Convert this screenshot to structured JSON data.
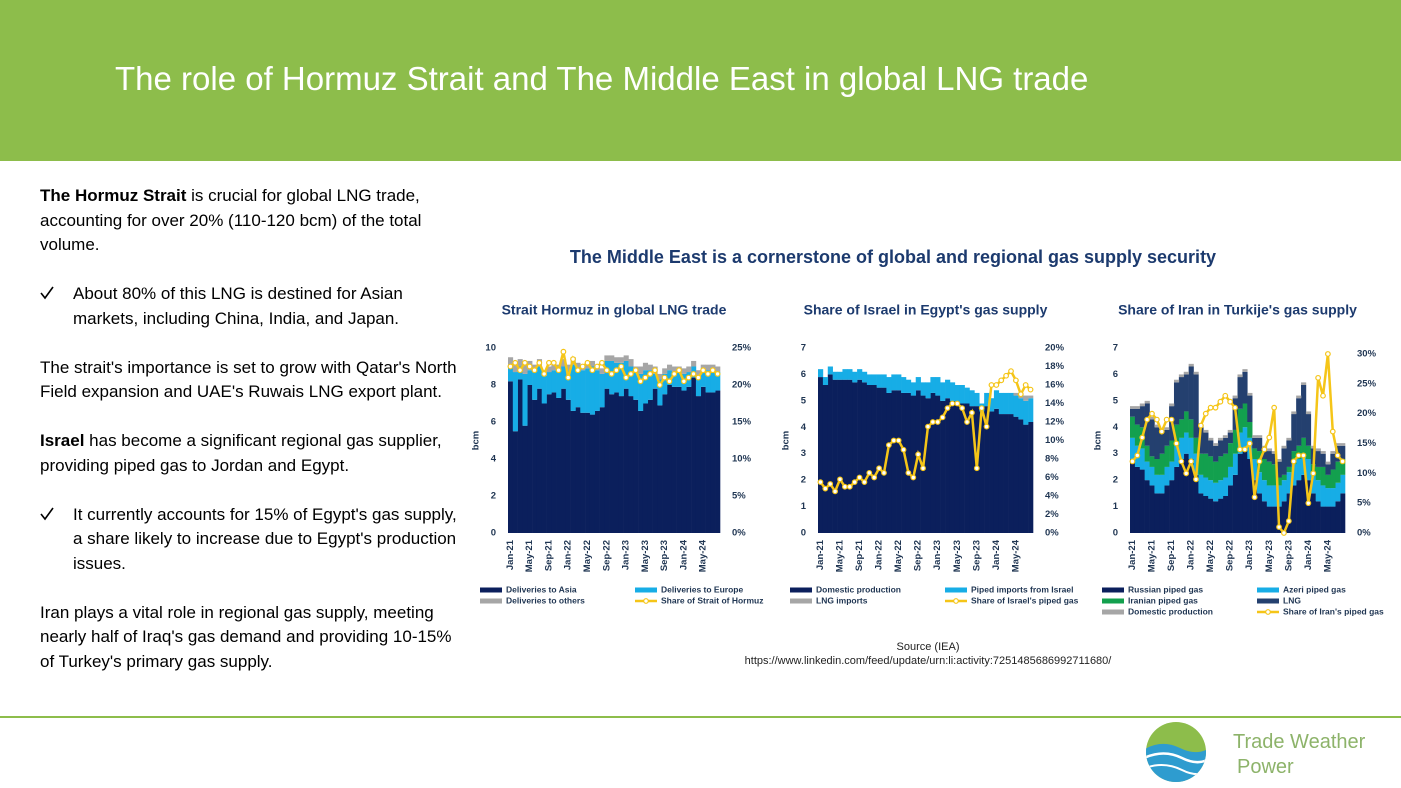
{
  "header": {
    "title": "The role of Hormuz Strait and The Middle East in global LNG trade"
  },
  "body": [
    {
      "bold": "The Hormuz Strait",
      "text": " is crucial for global LNG trade, accounting for over 20% (110-120 bcm) of the total volume."
    },
    {
      "text": "About 80% of this LNG is destined for Asian markets, including China, India, and Japan."
    },
    {
      "text": "The strait's importance is set to grow with Qatar's North Field expansion and UAE's Ruwais LNG export plant."
    },
    {
      "bold": "Israel",
      "text": " has become a significant regional gas supplier, providing piped gas to Jordan and Egypt."
    },
    {
      "text": "It currently accounts for 15% of Egypt's gas supply, a share likely to increase due to Egypt's production issues."
    },
    {
      "text": "Iran plays a vital role in regional gas supply, meeting nearly half of Iraq's gas demand and providing 10-15% of Turkey's primary gas supply."
    }
  ],
  "figure": {
    "title": "The Middle East is a cornerstone of global and regional gas supply security",
    "source": [
      "Source (IEA)",
      "https://www.linkedin.com/feed/update/urn:li:activity:7251485686992711680/"
    ]
  },
  "logo": {
    "line1": "Trade Weather",
    "line2": "Power"
  },
  "chart_data": [
    {
      "type": "bar",
      "stacked": true,
      "title": "Strait Hormuz in global LNG trade",
      "y_label": "bcm",
      "categories": [
        "Jan-21",
        null,
        null,
        null,
        "May-21",
        null,
        null,
        null,
        "Sep-21",
        null,
        null,
        null,
        "Jan-22",
        null,
        null,
        null,
        "May-22",
        null,
        null,
        null,
        "Sep-22",
        null,
        null,
        null,
        "Jan-23",
        null,
        null,
        null,
        "May-23",
        null,
        null,
        null,
        "Sep-23",
        null,
        null,
        null,
        "Jan-24",
        null,
        null,
        null,
        "May-24",
        null,
        null,
        null
      ],
      "ylim": [
        0,
        10
      ],
      "yticks": [
        0,
        2,
        4,
        6,
        8,
        10
      ],
      "y2lim": [
        0,
        25
      ],
      "y2ticks": [
        {
          "value": 0,
          "label": "0%"
        },
        {
          "value": 5,
          "label": "5%"
        },
        {
          "value": 10,
          "label": "10%"
        },
        {
          "value": 15,
          "label": "15%"
        },
        {
          "value": 20,
          "label": "20%"
        },
        {
          "value": 25,
          "label": "25%"
        }
      ],
      "series": [
        {
          "name": "Deliveries to Asia",
          "color": "#0b1f5c",
          "values": [
            8.2,
            5.5,
            8.3,
            5.8,
            8,
            7.2,
            7.8,
            7,
            7.5,
            7.6,
            7.3,
            7.8,
            7.2,
            6.6,
            6.8,
            6.5,
            6.5,
            6.4,
            6.6,
            6.8,
            7.8,
            7.5,
            7.6,
            7.4,
            7.8,
            7.4,
            7.2,
            6.6,
            7.0,
            7.2,
            7.8,
            6.9,
            7.5,
            8.0,
            7.9,
            7.9,
            7.7,
            7.9,
            8.4,
            7.4,
            7.9,
            7.6,
            7.6,
            7.7
          ]
        },
        {
          "name": "Deliveries to Europe",
          "color": "#17ade6",
          "values": [
            0.8,
            3.2,
            0.7,
            2.8,
            0.8,
            1.5,
            1.2,
            1.5,
            1.2,
            1.2,
            1.5,
            1.2,
            1.6,
            2.5,
            2.0,
            2.3,
            2.4,
            2.6,
            2.2,
            1.8,
            1.5,
            1.8,
            1.6,
            1.8,
            1.5,
            1.6,
            1.5,
            2.0,
            1.8,
            1.6,
            0.8,
            1.4,
            1.1,
            0.8,
            0.8,
            0.8,
            0.9,
            0.8,
            0.6,
            1.1,
            0.9,
            1.2,
            1.2,
            1.0
          ]
        },
        {
          "name": "Deliveries to others",
          "color": "#a6a6a6",
          "values": [
            0.5,
            0.4,
            0.4,
            0.5,
            0.5,
            0.4,
            0.4,
            0.3,
            0.3,
            0.3,
            0.3,
            0.4,
            0.3,
            0.4,
            0.4,
            0.3,
            0.3,
            0.3,
            0.3,
            0.3,
            0.3,
            0.3,
            0.3,
            0.3,
            0.3,
            0.4,
            0.3,
            0.4,
            0.4,
            0.3,
            0.4,
            0.3,
            0.3,
            0.3,
            0.3,
            0.3,
            0.3,
            0.3,
            0.3,
            0.3,
            0.3,
            0.3,
            0.3,
            0.3
          ]
        },
        {
          "name": "Share of Strait of Hormuz",
          "color": "#f5c518",
          "type": "line",
          "axis": "y2",
          "values": [
            22.5,
            23,
            22,
            23,
            22.5,
            22,
            23,
            21.5,
            23,
            23,
            22,
            24.5,
            21,
            23.5,
            22,
            22.5,
            23,
            22,
            22.5,
            23,
            22,
            21.5,
            22,
            22.5,
            21,
            21.5,
            22,
            20.5,
            21,
            21.5,
            22,
            20,
            21,
            20.5,
            21.5,
            22,
            20.5,
            21,
            21.5,
            21,
            22,
            21.5,
            22,
            21.5
          ]
        }
      ]
    },
    {
      "type": "bar",
      "stacked": true,
      "title": "Share of Israel in Egypt's gas supply",
      "y_label": "bcm",
      "categories": [
        "Jan-21",
        null,
        null,
        null,
        "May-21",
        null,
        null,
        null,
        "Sep-21",
        null,
        null,
        null,
        "Jan-22",
        null,
        null,
        null,
        "May-22",
        null,
        null,
        null,
        "Sep-22",
        null,
        null,
        null,
        "Jan-23",
        null,
        null,
        null,
        "May-23",
        null,
        null,
        null,
        "Sep-23",
        null,
        null,
        null,
        "Jan-24",
        null,
        null,
        null,
        "May-24",
        null,
        null,
        null
      ],
      "ylim": [
        0,
        7
      ],
      "yticks": [
        0,
        1,
        2,
        3,
        4,
        5,
        6,
        7
      ],
      "y2lim": [
        0,
        20
      ],
      "y2ticks": [
        {
          "value": 0,
          "label": "0%"
        },
        {
          "value": 2,
          "label": "2%"
        },
        {
          "value": 4,
          "label": "4%"
        },
        {
          "value": 6,
          "label": "6%"
        },
        {
          "value": 8,
          "label": "8%"
        },
        {
          "value": 10,
          "label": "10%"
        },
        {
          "value": 12,
          "label": "12%"
        },
        {
          "value": 14,
          "label": "14%"
        },
        {
          "value": 16,
          "label": "16%"
        },
        {
          "value": 18,
          "label": "18%"
        },
        {
          "value": 20,
          "label": "20%"
        }
      ],
      "series": [
        {
          "name": "Domestic production",
          "color": "#0b1f5c",
          "values": [
            5.9,
            5.6,
            6.0,
            5.8,
            5.8,
            5.8,
            5.8,
            5.7,
            5.8,
            5.7,
            5.6,
            5.6,
            5.5,
            5.5,
            5.3,
            5.4,
            5.4,
            5.3,
            5.3,
            5.2,
            5.4,
            5.2,
            5.1,
            5.3,
            5.2,
            5.0,
            5.1,
            5.0,
            4.9,
            4.9,
            4.9,
            4.8,
            4.8,
            4.6,
            4.8,
            4.6,
            4.7,
            4.5,
            4.5,
            4.5,
            4.4,
            4.3,
            4.1,
            4.2
          ]
        },
        {
          "name": "Piped imports from Israel",
          "color": "#17ade6",
          "values": [
            0.3,
            0.3,
            0.3,
            0.3,
            0.3,
            0.4,
            0.4,
            0.4,
            0.4,
            0.4,
            0.4,
            0.4,
            0.5,
            0.5,
            0.6,
            0.6,
            0.6,
            0.6,
            0.5,
            0.5,
            0.5,
            0.5,
            0.6,
            0.6,
            0.7,
            0.7,
            0.7,
            0.7,
            0.7,
            0.7,
            0.6,
            0.6,
            0.5,
            0.3,
            0.5,
            0.5,
            0.7,
            0.8,
            0.8,
            0.8,
            0.8,
            0.8,
            0.9,
            0.9
          ]
        },
        {
          "name": "LNG imports",
          "color": "#a6a6a6",
          "values": [
            0,
            0,
            0,
            0,
            0,
            0,
            0,
            0,
            0,
            0,
            0,
            0,
            0,
            0,
            0,
            0,
            0,
            0,
            0,
            0,
            0,
            0,
            0,
            0,
            0,
            0,
            0,
            0,
            0,
            0,
            0,
            0,
            0,
            0,
            0,
            0,
            0,
            0,
            0,
            0,
            0.1,
            0.2,
            0.2,
            0.1
          ]
        },
        {
          "name": "Share of Israel's piped gas",
          "color": "#f5c518",
          "type": "line",
          "axis": "y2",
          "values": [
            5.5,
            4.8,
            5.3,
            4.5,
            5.8,
            5,
            5,
            5.5,
            6,
            5.5,
            6.5,
            6,
            7,
            6.5,
            9.5,
            10,
            10,
            9,
            6.5,
            6,
            8.5,
            7,
            11.5,
            12,
            12,
            12.5,
            13.5,
            14,
            14,
            13.5,
            12,
            13,
            7,
            13.5,
            11.5,
            16,
            16,
            16.5,
            17,
            17.5,
            16.5,
            15,
            16,
            15.5
          ]
        }
      ]
    },
    {
      "type": "bar",
      "stacked": true,
      "title": "Share of Iran in Turkije's gas supply",
      "y_label": "bcm",
      "categories": [
        "Jan-21",
        null,
        null,
        null,
        "May-21",
        null,
        null,
        null,
        "Sep-21",
        null,
        null,
        null,
        "Jan-22",
        null,
        null,
        null,
        "May-22",
        null,
        null,
        null,
        "Sep-22",
        null,
        null,
        null,
        "Jan-23",
        null,
        null,
        null,
        "May-23",
        null,
        null,
        null,
        "Sep-23",
        null,
        null,
        null,
        "Jan-24",
        null,
        null,
        null,
        "May-24",
        null,
        null,
        null
      ],
      "ylim": [
        0,
        7
      ],
      "yticks": [
        0,
        1,
        2,
        3,
        4,
        5,
        6,
        7
      ],
      "y2lim": [
        0,
        31
      ],
      "y2ticks": [
        {
          "value": 0,
          "label": "0%"
        },
        {
          "value": 5,
          "label": "5%"
        },
        {
          "value": 10,
          "label": "10%"
        },
        {
          "value": 15,
          "label": "15%"
        },
        {
          "value": 20,
          "label": "20%"
        },
        {
          "value": 25,
          "label": "25%"
        },
        {
          "value": 30,
          "label": "30%"
        }
      ],
      "series": [
        {
          "name": "Russian piped gas",
          "color": "#0b1f5c",
          "values": [
            2.8,
            2.5,
            2.4,
            2.0,
            1.8,
            1.5,
            1.5,
            1.8,
            2.0,
            2.5,
            2.8,
            3.0,
            2.8,
            2.2,
            1.5,
            1.4,
            1.3,
            1.2,
            1.3,
            1.4,
            1.8,
            2.2,
            3.0,
            3.2,
            2.8,
            2.0,
            1.5,
            1.2,
            1.0,
            1.0,
            1.0,
            1.2,
            1.5,
            1.8,
            2.0,
            2.2,
            2.0,
            1.5,
            1.2,
            1.0,
            1.0,
            1.0,
            1.2,
            1.5
          ]
        },
        {
          "name": "Azeri piped gas",
          "color": "#17ade6",
          "values": [
            0.8,
            0.8,
            0.8,
            0.7,
            0.7,
            0.7,
            0.7,
            0.7,
            0.7,
            0.8,
            0.8,
            0.8,
            0.8,
            0.8,
            0.7,
            0.7,
            0.7,
            0.7,
            0.7,
            0.7,
            0.7,
            0.8,
            0.8,
            0.8,
            0.8,
            0.8,
            0.8,
            0.8,
            0.8,
            0.8,
            0.8,
            0.8,
            0.8,
            0.8,
            0.8,
            0.8,
            0.8,
            0.8,
            0.8,
            0.8,
            0.7,
            0.7,
            0.7,
            0.7
          ]
        },
        {
          "name": "Iranian piped gas",
          "color": "#13a04e",
          "values": [
            0.8,
            0.8,
            0.8,
            0.6,
            0.4,
            0.6,
            0.8,
            0.8,
            0.8,
            0.8,
            0.7,
            0.8,
            0.7,
            0.6,
            0.8,
            0.9,
            0.9,
            0.8,
            0.9,
            0.9,
            0.9,
            0.9,
            0.9,
            0.9,
            0.6,
            0.4,
            0.8,
            0.8,
            0.9,
            0.8,
            0.3,
            0.2,
            0.2,
            0.5,
            0.5,
            0.6,
            0.5,
            0.3,
            0.5,
            0.7,
            0.5,
            0.7,
            0.8,
            0.6
          ]
        },
        {
          "name": "LNG",
          "color": "#24406f",
          "values": [
            0.3,
            0.6,
            0.8,
            1.6,
            1.4,
            1.2,
            0.8,
            0.6,
            1.3,
            1.6,
            1.6,
            1.4,
            2.0,
            2.4,
            1.0,
            0.8,
            0.6,
            0.6,
            0.6,
            0.6,
            0.4,
            1.2,
            1.2,
            1.2,
            1.0,
            0.4,
            0.5,
            0.4,
            0.4,
            0.4,
            0.6,
            1.0,
            1.0,
            1.4,
            1.8,
            2.0,
            1.2,
            0.6,
            0.6,
            0.5,
            0.4,
            0.6,
            0.6,
            0.5
          ]
        },
        {
          "name": "Domestic production",
          "color": "#a6a6a6",
          "values": [
            0.1,
            0.1,
            0.1,
            0.1,
            0.1,
            0.1,
            0.1,
            0.1,
            0.1,
            0.1,
            0.1,
            0.1,
            0.1,
            0.1,
            0.1,
            0.1,
            0.1,
            0.1,
            0.1,
            0.1,
            0.1,
            0.1,
            0.1,
            0.1,
            0.1,
            0.1,
            0.1,
            0.1,
            0.1,
            0.1,
            0.1,
            0.1,
            0.1,
            0.1,
            0.1,
            0.1,
            0.1,
            0.1,
            0.1,
            0.1,
            0.1,
            0.1,
            0.1,
            0.1
          ]
        },
        {
          "name": "Share of Iran's piped gas",
          "color": "#f5c518",
          "type": "line",
          "axis": "y2",
          "values": [
            12,
            13,
            16,
            19,
            20,
            19,
            17,
            19,
            19,
            15,
            12,
            10,
            12,
            9,
            18,
            20,
            21,
            21,
            22,
            23,
            22,
            21,
            14,
            14,
            15,
            6,
            12,
            14,
            16,
            21,
            1,
            0,
            2,
            12,
            13,
            13,
            5,
            10,
            26,
            23,
            30,
            17,
            13,
            12
          ]
        }
      ]
    }
  ]
}
